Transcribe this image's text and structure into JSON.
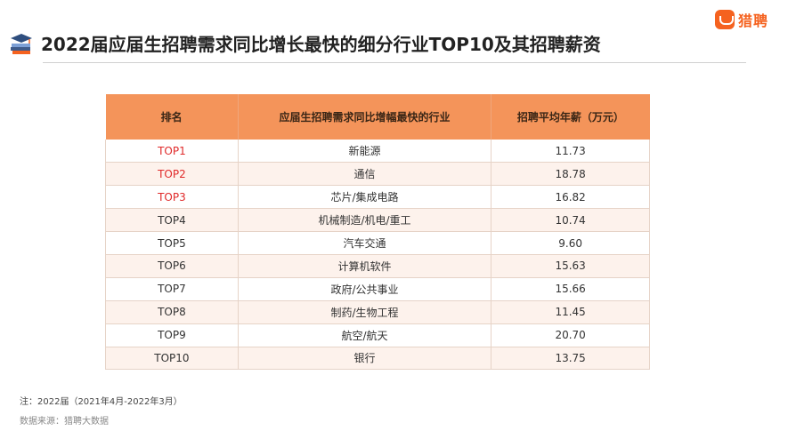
{
  "brand": {
    "name": "猎聘"
  },
  "title": "2022届应届生招聘需求同比增长最快的细分行业TOP10及其招聘薪资",
  "table": {
    "headers": [
      "排名",
      "应届生招聘需求同比增幅最快的行业",
      "招聘平均年薪（万元）"
    ],
    "rows": [
      {
        "rank": "TOP1",
        "industry": "新能源",
        "salary": "11.73"
      },
      {
        "rank": "TOP2",
        "industry": "通信",
        "salary": "18.78"
      },
      {
        "rank": "TOP3",
        "industry": "芯片/集成电路",
        "salary": "16.82"
      },
      {
        "rank": "TOP4",
        "industry": "机械制造/机电/重工",
        "salary": "10.74"
      },
      {
        "rank": "TOP5",
        "industry": "汽车交通",
        "salary": "9.60"
      },
      {
        "rank": "TOP6",
        "industry": "计算机软件",
        "salary": "15.63"
      },
      {
        "rank": "TOP7",
        "industry": "政府/公共事业",
        "salary": "15.66"
      },
      {
        "rank": "TOP8",
        "industry": "制药/生物工程",
        "salary": "11.45"
      },
      {
        "rank": "TOP9",
        "industry": "航空/航天",
        "salary": "20.70"
      },
      {
        "rank": "TOP10",
        "industry": "银行",
        "salary": "13.75"
      }
    ]
  },
  "colors": {
    "brand": "#f5621f",
    "header_bg": "#f4945a",
    "top3_text": "#e02a2a",
    "stripe": "#fdf2ec"
  },
  "footer": {
    "note": "注：2022届（2021年4月-2022年3月）",
    "source": "数据来源：猎聘大数据"
  }
}
